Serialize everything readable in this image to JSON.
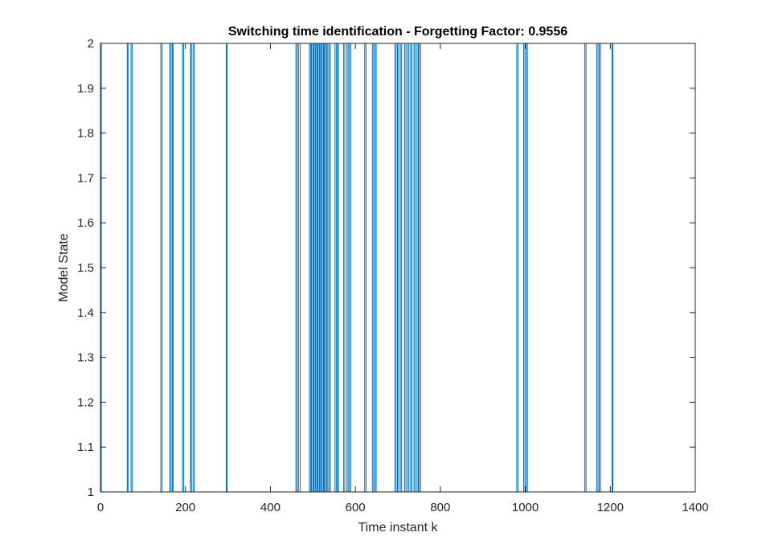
{
  "chart_data": {
    "type": "line",
    "title": "Switching time identification - Forgetting Factor: 0.9556",
    "xlabel": "Time instant k",
    "ylabel": "Model State",
    "xlim": [
      0,
      1400
    ],
    "ylim": [
      1,
      2
    ],
    "xticks": [
      0,
      200,
      400,
      600,
      800,
      1000,
      1200,
      1400
    ],
    "xtick_labels": [
      "0",
      "200",
      "400",
      "600",
      "800",
      "1000",
      "1200",
      "1400"
    ],
    "yticks": [
      1,
      1.1,
      1.2,
      1.3,
      1.4,
      1.5,
      1.6,
      1.7,
      1.8,
      1.9,
      2
    ],
    "ytick_labels": [
      "1",
      "1.1",
      "1.2",
      "1.3",
      "1.4",
      "1.5",
      "1.6",
      "1.7",
      "1.8",
      "1.9",
      "2"
    ],
    "grid": false,
    "box": true,
    "series": [
      {
        "color": "#0072BD",
        "x_end": 1275,
        "state2_intervals": [
          [
            1,
            2
          ],
          [
            63,
            65
          ],
          [
            72,
            75
          ],
          [
            142,
            145
          ],
          [
            163,
            166
          ],
          [
            169,
            171
          ],
          [
            193,
            196
          ],
          [
            212,
            214
          ],
          [
            218,
            221
          ],
          [
            296,
            298
          ],
          [
            460,
            463
          ],
          [
            466,
            470
          ],
          [
            492,
            495
          ],
          [
            497,
            500
          ],
          [
            502,
            505
          ],
          [
            507,
            510
          ],
          [
            512,
            515
          ],
          [
            517,
            520
          ],
          [
            522,
            525
          ],
          [
            527,
            530
          ],
          [
            532,
            535
          ],
          [
            538,
            541
          ],
          [
            552,
            555
          ],
          [
            558,
            560
          ],
          [
            572,
            575
          ],
          [
            580,
            583
          ],
          [
            586,
            589
          ],
          [
            622,
            625
          ],
          [
            640,
            643
          ],
          [
            646,
            649
          ],
          [
            693,
            696
          ],
          [
            699,
            702
          ],
          [
            706,
            709
          ],
          [
            716,
            719
          ],
          [
            723,
            726
          ],
          [
            730,
            733
          ],
          [
            738,
            741
          ],
          [
            745,
            748
          ],
          [
            750,
            754
          ],
          [
            980,
            983
          ],
          [
            996,
            999
          ],
          [
            1002,
            1005
          ],
          [
            1140,
            1143
          ],
          [
            1168,
            1171
          ],
          [
            1174,
            1177
          ],
          [
            1204,
            1206
          ]
        ]
      }
    ]
  }
}
